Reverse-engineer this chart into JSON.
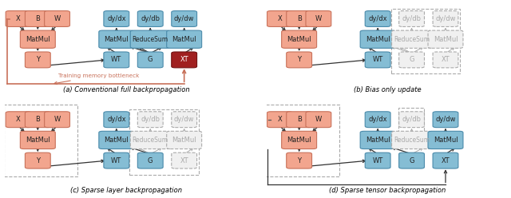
{
  "fig_width": 6.4,
  "fig_height": 2.48,
  "dpi": 100,
  "pink_fill": "#F2A58E",
  "pink_edge": "#C8715A",
  "blue_fill": "#85BDD4",
  "blue_edge": "#4A8AAA",
  "red_fill": "#A02020",
  "red_edge": "#701010",
  "gray_fill": "#F0F0F0",
  "gray_edge": "#AAAAAA",
  "gray_text": "#AAAAAA",
  "white": "#FFFFFF",
  "caption_a": "(a) Conventional full backpropagation",
  "caption_b": "(b) Bias only update",
  "caption_c": "(c) Sparse layer backpropagation",
  "caption_d": "(d) Sparse tensor backpropagation",
  "bottleneck_text": "Training memory bottleneck"
}
